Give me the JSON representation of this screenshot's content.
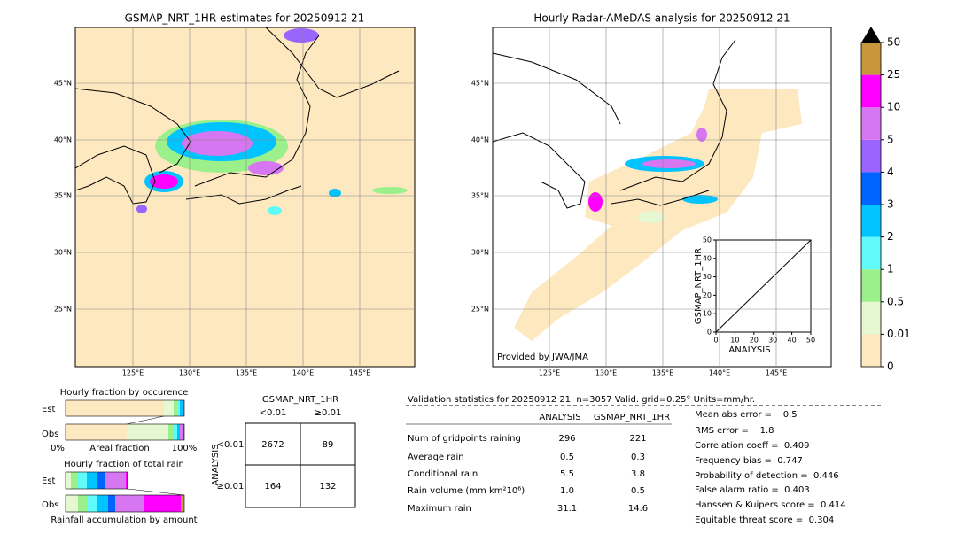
{
  "left_map": {
    "title": "GSMAP_NRT_1HR estimates for 20250912 21",
    "lat_labels": [
      "45°N",
      "40°N",
      "35°N",
      "30°N",
      "25°N"
    ],
    "lon_labels": [
      "125°E",
      "130°E",
      "135°E",
      "140°E",
      "145°E"
    ]
  },
  "right_map": {
    "title": "Hourly Radar-AMeDAS analysis for 20250912 21",
    "lat_labels": [
      "45°N",
      "40°N",
      "35°N",
      "30°N",
      "25°N"
    ],
    "lon_labels": [
      "125°E",
      "130°E",
      "135°E",
      "140°E",
      "145°E"
    ],
    "credit": "Provided by JWA/JMA"
  },
  "scatter": {
    "ylabel": "GSMAP_NRT_1HR",
    "xlabel": "ANALYSIS",
    "ticks": [
      "0",
      "10",
      "20",
      "30",
      "40",
      "50"
    ]
  },
  "colorbar": {
    "labels": [
      "0",
      "0.01",
      "0.5",
      "1",
      "2",
      "3",
      "4",
      "5",
      "10",
      "25",
      "50"
    ],
    "colors": [
      "#fde8c0",
      "#e6f8d2",
      "#9cf08c",
      "#60fafa",
      "#00c4ff",
      "#0064ff",
      "#9a64ff",
      "#d676f0",
      "#ff00ff",
      "#c8963c"
    ]
  },
  "occurrence": {
    "title": "Hourly fraction by occurence",
    "rows": [
      "Est",
      "Obs"
    ],
    "axis": [
      "0%",
      "Areal fraction",
      "100%"
    ]
  },
  "total_rain": {
    "title": "Hourly fraction of total rain",
    "rows": [
      "Est",
      "Obs"
    ],
    "footer": "Rainfall accumulation by amount"
  },
  "contingency": {
    "title": "GSMAP_NRT_1HR",
    "cols": [
      "<0.01",
      "≥0.01"
    ],
    "row_axis": "ANALYSIS",
    "rows": [
      "<0.01",
      "≥0.01"
    ],
    "cells": [
      [
        "2672",
        "89"
      ],
      [
        "164",
        "132"
      ]
    ]
  },
  "validation": {
    "header": "Validation statistics for 20250912 21  n=3057 Valid. grid=0.25° Units=mm/hr.",
    "columns": [
      "ANALYSIS",
      "GSMAP_NRT_1HR"
    ],
    "rows": [
      [
        "Num of gridpoints raining",
        "296",
        "221"
      ],
      [
        "Average rain",
        "0.5",
        "0.3"
      ],
      [
        "Conditional rain",
        "5.5",
        "3.8"
      ],
      [
        "Rain volume (mm km²10⁶)",
        "1.0",
        "0.5"
      ],
      [
        "Maximum rain",
        "31.1",
        "14.6"
      ]
    ],
    "scores": [
      "Mean abs error =    0.5",
      "RMS error =    1.8",
      "Correlation coeff =  0.409",
      "Frequency bias =  0.747",
      "Probability of detection =  0.446",
      "False alarm ratio =  0.403",
      "Hanssen & Kuipers score =  0.414",
      "Equitable threat score =  0.304"
    ]
  }
}
